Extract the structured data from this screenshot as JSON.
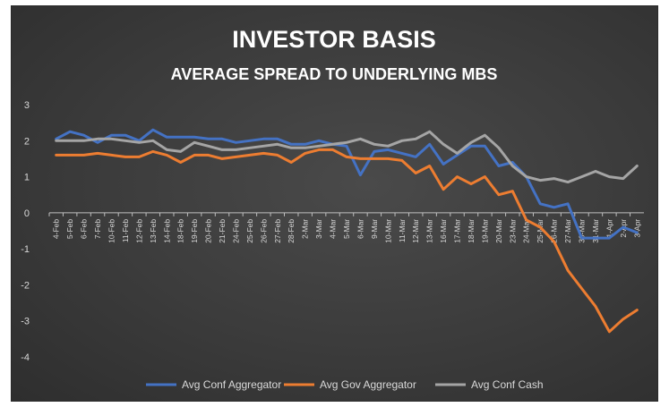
{
  "chart_data": {
    "type": "line",
    "title": "INVESTOR BASIS",
    "subtitle": "AVERAGE SPREAD TO UNDERLYING MBS",
    "xlabel": "",
    "ylabel": "",
    "ylim": [
      -4,
      3
    ],
    "yticks": [
      3,
      2,
      1,
      0,
      -1,
      -2,
      -3,
      -4
    ],
    "grid": false,
    "legend_position": "bottom",
    "categories": [
      "4-Feb",
      "5-Feb",
      "6-Feb",
      "7-Feb",
      "10-Feb",
      "11-Feb",
      "12-Feb",
      "13-Feb",
      "14-Feb",
      "18-Feb",
      "19-Feb",
      "20-Feb",
      "21-Feb",
      "24-Feb",
      "25-Feb",
      "26-Feb",
      "27-Feb",
      "28-Feb",
      "2-Mar",
      "3-Mar",
      "4-Mar",
      "5-Mar",
      "6-Mar",
      "9-Mar",
      "10-Mar",
      "11-Mar",
      "12-Mar",
      "13-Mar",
      "16-Mar",
      "17-Mar",
      "18-Mar",
      "19-Mar",
      "20-Mar",
      "23-Mar",
      "24-Mar",
      "25-Mar",
      "26-Mar",
      "27-Mar",
      "30-Mar",
      "31-Mar",
      "1-Apr",
      "2-Apr",
      "3-Apr"
    ],
    "series": [
      {
        "name": "Avg Conf Aggregator",
        "color": "#4472c4",
        "values": [
          2.05,
          2.25,
          2.15,
          1.95,
          2.15,
          2.15,
          2.0,
          2.3,
          2.1,
          2.1,
          2.1,
          2.05,
          2.05,
          1.95,
          2.0,
          2.05,
          2.05,
          1.9,
          1.9,
          2.0,
          1.9,
          1.85,
          1.05,
          1.7,
          1.75,
          1.65,
          1.55,
          1.9,
          1.35,
          1.6,
          1.85,
          1.85,
          1.3,
          1.4,
          1.0,
          0.25,
          0.15,
          0.25,
          -0.7,
          -0.7,
          -0.7,
          -0.4,
          -0.55
        ]
      },
      {
        "name": "Avg Gov Aggregator",
        "color": "#ed7d31",
        "values": [
          1.6,
          1.6,
          1.6,
          1.65,
          1.6,
          1.55,
          1.55,
          1.7,
          1.6,
          1.4,
          1.6,
          1.6,
          1.5,
          1.55,
          1.6,
          1.65,
          1.6,
          1.4,
          1.65,
          1.75,
          1.75,
          1.55,
          1.5,
          1.5,
          1.5,
          1.45,
          1.1,
          1.3,
          0.65,
          1.0,
          0.8,
          1.0,
          0.5,
          0.6,
          -0.2,
          -0.4,
          -0.8,
          -1.6,
          -2.1,
          -2.6,
          -3.3,
          -2.95,
          -2.7
        ]
      },
      {
        "name": "Avg Conf Cash",
        "color": "#a5a5a5",
        "values": [
          2.0,
          2.0,
          2.0,
          2.05,
          2.05,
          2.0,
          1.95,
          2.0,
          1.75,
          1.7,
          1.95,
          1.85,
          1.75,
          1.75,
          1.8,
          1.85,
          1.9,
          1.8,
          1.8,
          1.85,
          1.9,
          1.95,
          2.05,
          1.9,
          1.85,
          2.0,
          2.05,
          2.25,
          1.9,
          1.65,
          1.95,
          2.15,
          1.8,
          1.3,
          1.0,
          0.9,
          0.95,
          0.85,
          1.0,
          1.15,
          1.0,
          0.95,
          1.3
        ]
      }
    ]
  }
}
